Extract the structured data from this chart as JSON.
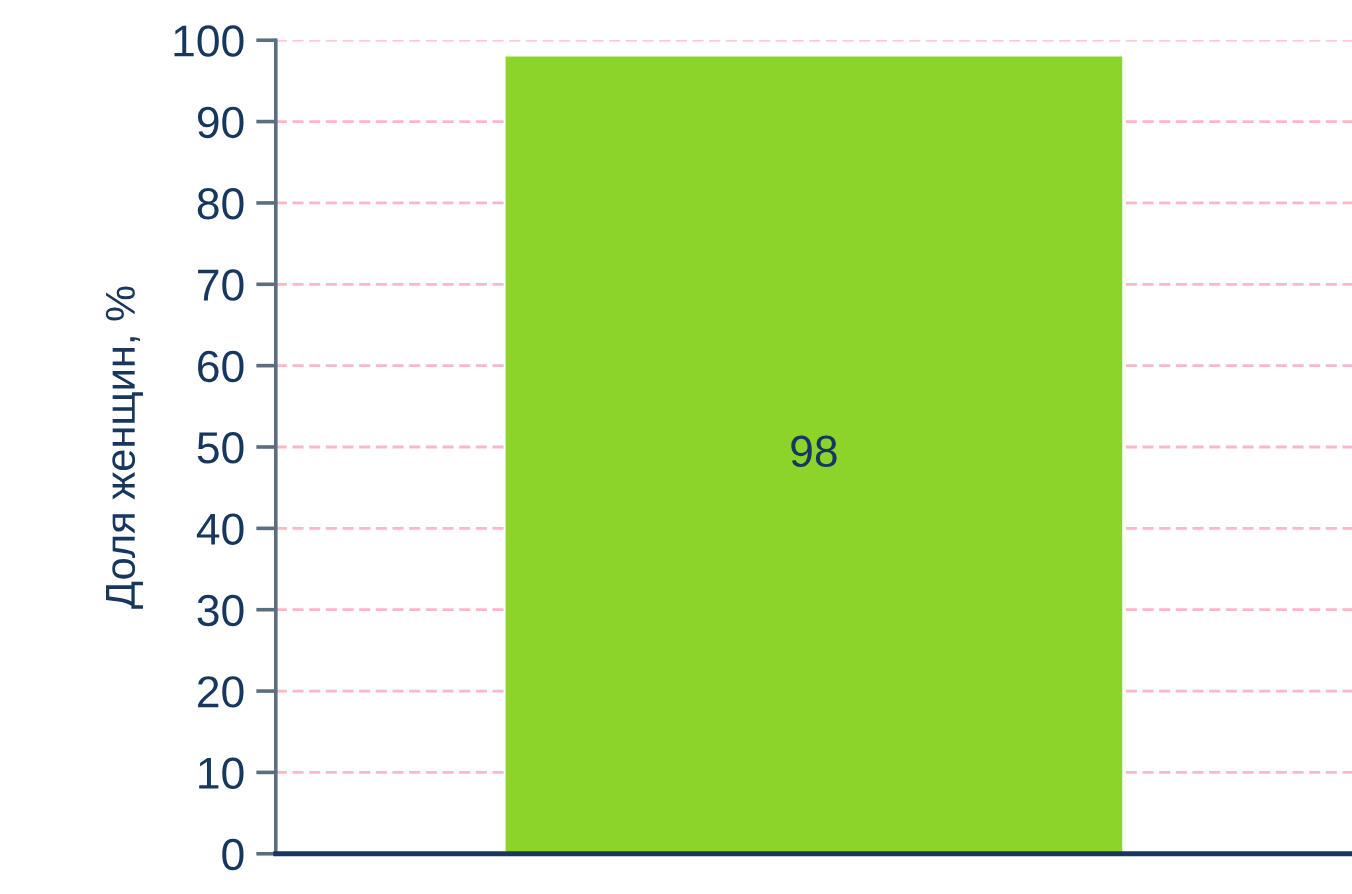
{
  "chart_data": {
    "type": "bar",
    "ylabel": "Доля женщин, %",
    "categories": [
      null
    ],
    "values": [
      98
    ],
    "color": "#8bd42a",
    "ylim": [
      0,
      100
    ],
    "yticks": [
      0,
      10,
      20,
      30,
      40,
      50,
      60,
      70,
      80,
      90,
      100
    ],
    "grid": "y",
    "data_labels": true
  }
}
